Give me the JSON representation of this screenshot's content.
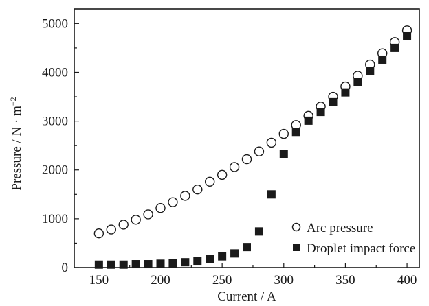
{
  "chart_data": {
    "type": "scatter",
    "xlabel": "Current / A",
    "ylabel": "Pressure / N · m",
    "ylabel_exponent": "−2",
    "xlim": [
      130,
      410
    ],
    "ylim": [
      0,
      5300
    ],
    "x_ticks": [
      150,
      200,
      250,
      300,
      350,
      400
    ],
    "x_tick_labels": [
      "150",
      "200",
      "250",
      "300",
      "350",
      "400"
    ],
    "y_ticks": [
      0,
      1000,
      2000,
      3000,
      4000,
      5000
    ],
    "y_tick_labels": [
      "0",
      "1000",
      "2000",
      "3000",
      "4000",
      "5000"
    ],
    "legend_position": "bottom-right",
    "series": [
      {
        "name": "Arc pressure",
        "marker": "open-circle",
        "color": "#1a1a1a",
        "x": [
          150,
          160,
          170,
          180,
          190,
          200,
          210,
          220,
          230,
          240,
          250,
          260,
          270,
          280,
          290,
          300,
          310,
          320,
          330,
          340,
          350,
          360,
          370,
          380,
          390,
          400
        ],
        "y": [
          700,
          780,
          880,
          980,
          1090,
          1220,
          1340,
          1470,
          1600,
          1760,
          1900,
          2060,
          2220,
          2380,
          2560,
          2740,
          2920,
          3110,
          3300,
          3500,
          3710,
          3930,
          4160,
          4390,
          4620,
          4860
        ]
      },
      {
        "name": "Droplet impact force",
        "marker": "filled-square",
        "color": "#1a1a1a",
        "x": [
          150,
          160,
          170,
          180,
          190,
          200,
          210,
          220,
          230,
          240,
          250,
          260,
          270,
          280,
          290,
          300,
          310,
          320,
          330,
          340,
          350,
          360,
          370,
          380,
          390,
          400
        ],
        "y": [
          60,
          60,
          60,
          70,
          70,
          80,
          90,
          110,
          140,
          180,
          230,
          290,
          420,
          740,
          1500,
          2330,
          2780,
          3010,
          3190,
          3390,
          3590,
          3800,
          4030,
          4260,
          4500,
          4750
        ]
      }
    ]
  }
}
